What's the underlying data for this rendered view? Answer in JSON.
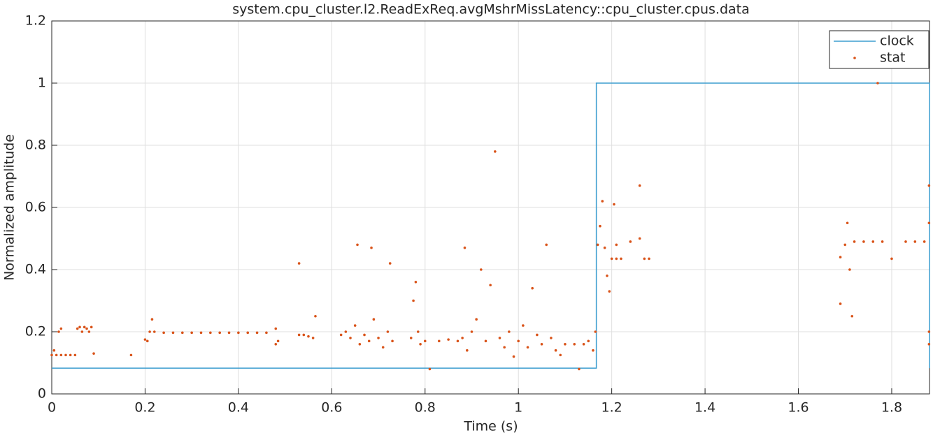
{
  "chart_data": {
    "type": "line",
    "title": "system.cpu_cluster.l2.ReadExReq.avgMshrMissLatency::cpu_cluster.cpus.data",
    "x_label": "Time (s)",
    "y_label": "Normalized amplitude",
    "xlim": [
      0,
      1.881
    ],
    "ylim": [
      0,
      1.2
    ],
    "xticks": [
      0,
      0.2,
      0.4,
      0.6,
      0.8,
      1,
      1.2,
      1.4,
      1.6,
      1.8
    ],
    "yticks": [
      0,
      0.2,
      0.4,
      0.6,
      0.8,
      1,
      1.2
    ],
    "grid": true,
    "legend": "upper-right",
    "series": [
      {
        "name": "clock",
        "type": "line",
        "color": "#3c9dcf",
        "x": [
          0,
          1.167,
          1.167,
          1.881,
          1.881
        ],
        "values": [
          0.083,
          0.083,
          1,
          1,
          0.083
        ]
      },
      {
        "name": "stat",
        "type": "scatter",
        "color": "#d95319",
        "x": [
          0,
          0.01,
          0.02,
          0.03,
          0.04,
          0.05,
          0.005,
          0.015,
          0.02,
          0.055,
          0.06,
          0.065,
          0.07,
          0.075,
          0.08,
          0.085,
          0.09,
          0.17,
          0.2,
          0.205,
          0.21,
          0.215,
          0.22,
          0.24,
          0.26,
          0.28,
          0.3,
          0.32,
          0.34,
          0.36,
          0.38,
          0.4,
          0.42,
          0.44,
          0.46,
          0.48,
          0.48,
          0.485,
          0.53,
          0.53,
          0.54,
          0.55,
          0.56,
          0.565,
          0.62,
          0.63,
          0.64,
          0.65,
          0.655,
          0.66,
          0.67,
          0.68,
          0.685,
          0.69,
          0.7,
          0.71,
          0.72,
          0.725,
          0.73,
          0.77,
          0.775,
          0.78,
          0.785,
          0.79,
          0.8,
          0.81,
          0.83,
          0.85,
          0.87,
          0.88,
          0.885,
          0.89,
          0.9,
          0.91,
          0.92,
          0.93,
          0.94,
          0.95,
          0.96,
          0.97,
          0.98,
          0.99,
          1.0,
          1.01,
          1.02,
          1.03,
          1.04,
          1.05,
          1.06,
          1.07,
          1.08,
          1.09,
          1.1,
          1.12,
          1.13,
          1.14,
          1.15,
          1.16,
          1.165,
          1.17,
          1.175,
          1.18,
          1.185,
          1.19,
          1.195,
          1.2,
          1.21,
          1.22,
          1.205,
          1.21,
          1.24,
          1.26,
          1.26,
          1.27,
          1.28,
          1.69,
          1.69,
          1.7,
          1.705,
          1.71,
          1.715,
          1.72,
          1.74,
          1.76,
          1.77,
          1.78,
          1.8,
          1.83,
          1.85,
          1.87,
          1.88,
          1.88,
          1.88,
          1.88
        ],
        "values": [
          0.125,
          0.125,
          0.125,
          0.125,
          0.125,
          0.125,
          0.14,
          0.2,
          0.21,
          0.21,
          0.215,
          0.2,
          0.215,
          0.21,
          0.2,
          0.215,
          0.13,
          0.125,
          0.175,
          0.17,
          0.2,
          0.24,
          0.2,
          0.197,
          0.197,
          0.197,
          0.197,
          0.197,
          0.197,
          0.197,
          0.197,
          0.197,
          0.197,
          0.197,
          0.197,
          0.16,
          0.21,
          0.17,
          0.42,
          0.19,
          0.19,
          0.185,
          0.18,
          0.25,
          0.19,
          0.2,
          0.18,
          0.22,
          0.48,
          0.16,
          0.19,
          0.17,
          0.47,
          0.24,
          0.18,
          0.15,
          0.2,
          0.42,
          0.17,
          0.18,
          0.3,
          0.36,
          0.2,
          0.16,
          0.17,
          0.08,
          0.17,
          0.175,
          0.17,
          0.18,
          0.47,
          0.14,
          0.2,
          0.24,
          0.4,
          0.17,
          0.35,
          0.78,
          0.18,
          0.15,
          0.2,
          0.12,
          0.17,
          0.22,
          0.15,
          0.34,
          0.19,
          0.16,
          0.48,
          0.18,
          0.14,
          0.125,
          0.16,
          0.16,
          0.08,
          0.16,
          0.17,
          0.14,
          0.2,
          0.48,
          0.54,
          0.62,
          0.47,
          0.38,
          0.33,
          0.435,
          0.435,
          0.435,
          0.61,
          0.48,
          0.49,
          0.67,
          0.5,
          0.435,
          0.435,
          0.29,
          0.44,
          0.48,
          0.55,
          0.4,
          0.25,
          0.49,
          0.49,
          0.49,
          1,
          0.49,
          0.435,
          0.49,
          0.49,
          0.49,
          0.67,
          0.2,
          0.16,
          0.55
        ]
      }
    ]
  }
}
